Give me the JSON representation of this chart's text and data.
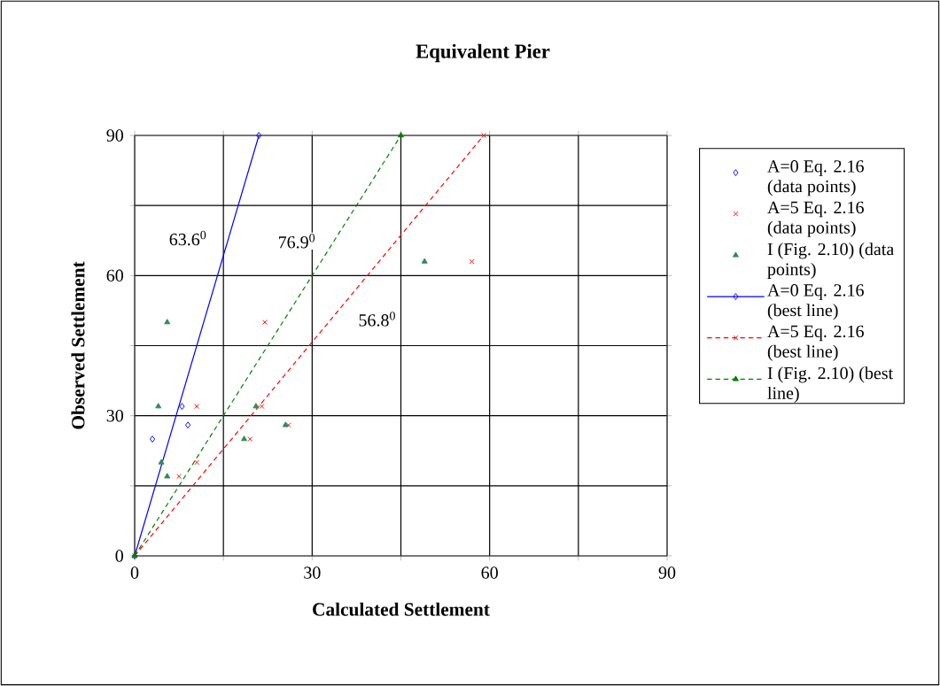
{
  "chart_data": {
    "type": "scatter",
    "title": "Equivalent Pier",
    "xlabel": "Calculated Settlement",
    "ylabel": "Observed Settlement",
    "xlim": [
      0,
      90
    ],
    "ylim": [
      0,
      90
    ],
    "xticks": [
      0,
      {
        "value": 15,
        "label": null
      },
      30,
      {
        "value": 45,
        "label": null
      },
      60,
      {
        "value": 75,
        "label": null
      },
      90
    ],
    "yticks": [
      0,
      {
        "value": 15,
        "label": null
      },
      30,
      {
        "value": 45,
        "label": null
      },
      60,
      {
        "value": 75,
        "label": null
      },
      90
    ],
    "grid": true,
    "legend": "right",
    "annotations": [
      "63.6$^{0}$",
      "76.9$^{0}$",
      "56.8$^{0}$"
    ],
    "series": [
      {
        "name": "A=0 Eq. 2.16 (data points)",
        "color": "#0000ff",
        "marker": "diamond",
        "x": [
          3,
          8,
          9
        ],
        "values": [
          25,
          32,
          28
        ]
      },
      {
        "name": "A=5 Eq. 2.16 (data points)",
        "color": "#ff0000",
        "marker": "cross",
        "x": [
          10.5,
          22,
          57,
          21.5,
          26,
          19.5,
          10.5,
          7.5
        ],
        "values": [
          32,
          50,
          63,
          32,
          28,
          25,
          20,
          17
        ]
      },
      {
        "name": "I (Fig. 2.10) (data points)",
        "color": "#2e8b57",
        "marker": "triangle",
        "x": [
          5.5,
          4,
          4.5,
          5.5,
          20.5,
          18.5,
          25.5,
          49
        ],
        "values": [
          50,
          32,
          20,
          17,
          32,
          25,
          28,
          63
        ]
      },
      {
        "name": "A=0 Eq. 2.16 (best line)",
        "type": "line",
        "color": "#0000ff",
        "marker": "diamond",
        "line_style": "solid",
        "x": [
          0,
          21
        ],
        "values": [
          0,
          90
        ]
      },
      {
        "name": "A=5 Eq. 2.16 (best line)",
        "type": "line",
        "color": "#ff0000",
        "marker": "cross",
        "line_style": "dashed",
        "x": [
          0,
          59
        ],
        "values": [
          0,
          90
        ]
      },
      {
        "name": "I (Fig. 2.10) (best line)",
        "type": "line",
        "color": "#008000",
        "marker": "triangle",
        "line_style": "dashed",
        "x": [
          0,
          45
        ],
        "values": [
          0,
          90
        ]
      }
    ]
  }
}
